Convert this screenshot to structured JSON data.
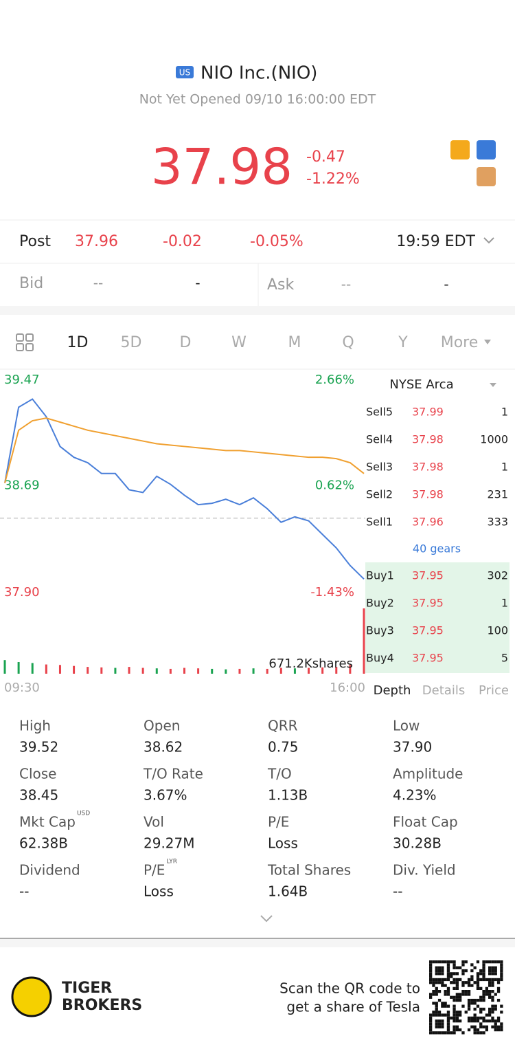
{
  "header": {
    "market_badge": "US",
    "title": "NIO Inc.(NIO)",
    "status": "Not Yet Opened 09/10 16:00:00 EDT"
  },
  "quote": {
    "price": "37.98",
    "change": "-0.47",
    "change_pct": "-1.22%"
  },
  "post": {
    "label": "Post",
    "price": "37.96",
    "change": "-0.02",
    "change_pct": "-0.05%",
    "time": "19:59 EDT"
  },
  "bid_ask": {
    "bid_label": "Bid",
    "bid_price": "--",
    "bid_size": "-",
    "ask_label": "Ask",
    "ask_price": "--",
    "ask_size": "-"
  },
  "tabs": [
    "1D",
    "5D",
    "D",
    "W",
    "M",
    "Q",
    "Y",
    "More"
  ],
  "intraday": {
    "type": "line",
    "ylim": [
      37.9,
      39.47
    ],
    "yticks": [
      39.47,
      38.69,
      {
        "value": 37.9,
        "label": "37.90"
      }
    ],
    "right_labels": [
      "2.66%",
      "0.62%",
      "-1.43%"
    ],
    "ref_line": 38.45,
    "x_labels": [
      "09:30",
      "16:00"
    ],
    "volume_label": "671.2Kshares",
    "series": [
      {
        "name": "Price",
        "color": "#4a7fd9",
        "values": [
          38.71,
          39.27,
          39.33,
          39.2,
          38.98,
          38.9,
          38.86,
          38.78,
          38.78,
          38.66,
          38.64,
          38.76,
          38.7,
          38.62,
          38.55,
          38.56,
          38.59,
          38.55,
          38.6,
          38.52,
          38.42,
          38.46,
          38.43,
          38.33,
          38.23,
          38.1,
          38.0
        ]
      },
      {
        "name": "Average",
        "color": "#f0a030",
        "values": [
          38.71,
          39.1,
          39.17,
          39.19,
          39.16,
          39.13,
          39.1,
          39.08,
          39.06,
          39.04,
          39.02,
          39.0,
          38.99,
          38.98,
          38.97,
          38.96,
          38.95,
          38.95,
          38.94,
          38.93,
          38.92,
          38.91,
          38.9,
          38.9,
          38.89,
          38.86,
          38.78
        ]
      }
    ],
    "volume": [
      140,
      120,
      110,
      95,
      90,
      80,
      70,
      65,
      60,
      70,
      60,
      55,
      50,
      60,
      55,
      50,
      45,
      50,
      55,
      50,
      60,
      55,
      60,
      65,
      70,
      90,
      671.2
    ]
  },
  "order_book": {
    "exchange": "NYSE Arca",
    "sells": [
      [
        "Sell5",
        "37.99",
        "1"
      ],
      [
        "Sell4",
        "37.98",
        "1000"
      ],
      [
        "Sell3",
        "37.98",
        "1"
      ],
      [
        "Sell2",
        "37.98",
        "231"
      ],
      [
        "Sell1",
        "37.96",
        "333"
      ]
    ],
    "gears": "40 gears",
    "buys": [
      [
        "Buy1",
        "37.95",
        "302"
      ],
      [
        "Buy2",
        "37.95",
        "1"
      ],
      [
        "Buy3",
        "37.95",
        "100"
      ],
      [
        "Buy4",
        "37.95",
        "5"
      ]
    ],
    "tabs": [
      "Depth",
      "Details",
      "Price"
    ]
  },
  "stats": [
    {
      "label": "High",
      "value": "39.52"
    },
    {
      "label": "Open",
      "value": "38.62"
    },
    {
      "label": "QRR",
      "value": "0.75"
    },
    {
      "label": "Low",
      "value": "37.90"
    },
    {
      "label": "Close",
      "value": "38.45"
    },
    {
      "label": "T/O Rate",
      "value": "3.67%"
    },
    {
      "label": "T/O",
      "value": "1.13B"
    },
    {
      "label": "Amplitude",
      "value": "4.23%"
    },
    {
      "label": "Mkt Cap",
      "sup": "USD",
      "value": "62.38B"
    },
    {
      "label": "Vol",
      "value": "29.27M"
    },
    {
      "label": "P/E",
      "value": "Loss"
    },
    {
      "label": "Float Cap",
      "value": "30.28B"
    },
    {
      "label": "Dividend",
      "value": "--"
    },
    {
      "label": "P/E",
      "sup": "LYR",
      "value": "Loss"
    },
    {
      "label": "Total Shares",
      "value": "1.64B"
    },
    {
      "label": "Div. Yield",
      "value": "--"
    }
  ],
  "footer": {
    "brand": [
      "TIGER",
      "BROKERS"
    ],
    "cta": [
      "Scan the QR code to",
      "get a share of Tesla"
    ]
  }
}
